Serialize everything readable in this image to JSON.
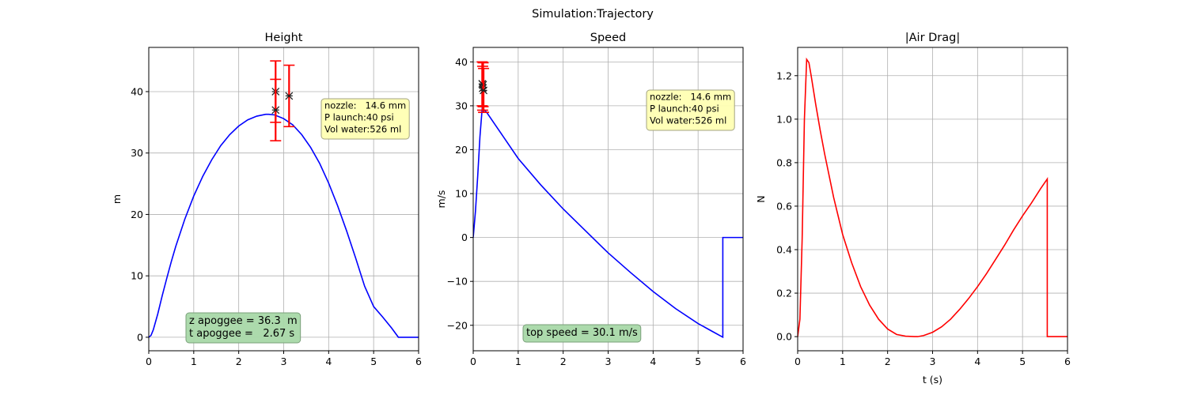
{
  "figure": {
    "suptitle": "Simulation:Trajectory"
  },
  "chart_data": [
    {
      "id": "height",
      "type": "line",
      "title": "Height",
      "xlabel": "",
      "ylabel": "m",
      "xlim": [
        0,
        6
      ],
      "ylim": [
        -2.2,
        47.2
      ],
      "xticks": [
        0,
        1,
        2,
        3,
        4,
        5,
        6
      ],
      "yticks": [
        0,
        10,
        20,
        30,
        40
      ],
      "grid": true,
      "series": [
        {
          "color": "#0000ff",
          "kind": "line",
          "x": [
            0,
            0.05,
            0.1,
            0.2,
            0.3,
            0.4,
            0.5,
            0.6,
            0.8,
            1.0,
            1.2,
            1.4,
            1.6,
            1.8,
            2.0,
            2.2,
            2.4,
            2.6,
            2.67,
            2.8,
            3.0,
            3.2,
            3.4,
            3.6,
            3.8,
            4.0,
            4.2,
            4.4,
            4.6,
            4.8,
            5.0,
            5.2,
            5.4,
            5.55,
            6.0
          ],
          "y": [
            0,
            0.3,
            1.2,
            3.8,
            6.8,
            9.6,
            12.3,
            14.8,
            19.2,
            23.0,
            26.2,
            28.9,
            31.2,
            33.0,
            34.4,
            35.4,
            36.0,
            36.3,
            36.3,
            36.2,
            35.6,
            34.6,
            33.0,
            30.9,
            28.3,
            25.1,
            21.4,
            17.3,
            12.9,
            8.3,
            5.0,
            3.3,
            1.5,
            0,
            0
          ]
        }
      ],
      "measurements": [
        {
          "x": 2.82,
          "y": 40.0,
          "yerr": 5.0
        },
        {
          "x": 2.82,
          "y": 37.0,
          "yerr": 5.0
        },
        {
          "x": 3.12,
          "y": 39.3,
          "yerr": 5.0
        }
      ],
      "annotations": [
        {
          "lines": [
            "nozzle:   14.6 mm",
            "P launch:40 psi",
            "Vol water:526 ml"
          ],
          "style": "yellow"
        },
        {
          "lines": [
            "z apoggee = 36.3  m",
            "t apoggee =   2.67 s"
          ],
          "style": "green"
        }
      ]
    },
    {
      "id": "speed",
      "type": "line",
      "title": "Speed",
      "xlabel": "",
      "ylabel": "m/s",
      "xlim": [
        0,
        6
      ],
      "ylim": [
        -25.8,
        43.3
      ],
      "xticks": [
        0,
        1,
        2,
        3,
        4,
        5,
        6
      ],
      "yticks": [
        -20,
        -10,
        0,
        10,
        20,
        30,
        40
      ],
      "grid": true,
      "series": [
        {
          "color": "#0000ff",
          "kind": "line",
          "x": [
            0,
            0.05,
            0.1,
            0.15,
            0.2,
            0.3,
            0.5,
            0.7,
            1.0,
            1.5,
            2.0,
            2.5,
            3.0,
            3.5,
            4.0,
            4.5,
            5.0,
            5.3,
            5.55,
            5.55,
            6.0
          ],
          "y": [
            0,
            6,
            14,
            23,
            29.5,
            28.5,
            25.5,
            22.5,
            18.0,
            12.0,
            6.5,
            1.5,
            -3.5,
            -8.0,
            -12.3,
            -16.2,
            -19.6,
            -21.3,
            -22.7,
            0,
            0
          ]
        }
      ],
      "measurements": [
        {
          "x": 0.2,
          "y": 35.0,
          "yerr": 5.0
        },
        {
          "x": 0.21,
          "y": 34.0,
          "yerr": 5.0
        },
        {
          "x": 0.22,
          "y": 34.8,
          "yerr": 5.0
        },
        {
          "x": 0.23,
          "y": 33.5,
          "yerr": 5.0
        }
      ],
      "annotations": [
        {
          "lines": [
            "nozzle:   14.6 mm",
            "P launch:40 psi",
            "Vol water:526 ml"
          ],
          "style": "yellow"
        },
        {
          "lines": [
            "top speed = 30.1 m/s"
          ],
          "style": "green"
        }
      ]
    },
    {
      "id": "drag",
      "type": "line",
      "title": "|Air Drag|",
      "xlabel": "t (s)",
      "ylabel": "N",
      "xlim": [
        0,
        6
      ],
      "ylim": [
        -0.065,
        1.33
      ],
      "xticks": [
        0,
        1,
        2,
        3,
        4,
        5,
        6
      ],
      "yticks": [
        0.0,
        0.2,
        0.4,
        0.6,
        0.8,
        1.0,
        1.2
      ],
      "grid": true,
      "series": [
        {
          "color": "#ff0000",
          "kind": "line",
          "x": [
            0,
            0.05,
            0.1,
            0.15,
            0.2,
            0.25,
            0.3,
            0.4,
            0.5,
            0.6,
            0.8,
            1.0,
            1.2,
            1.4,
            1.6,
            1.8,
            2.0,
            2.2,
            2.4,
            2.6,
            2.67,
            2.8,
            3.0,
            3.2,
            3.4,
            3.6,
            3.8,
            4.0,
            4.2,
            4.4,
            4.6,
            4.8,
            5.0,
            5.2,
            5.4,
            5.55,
            5.55,
            6.0
          ],
          "y": [
            0,
            0.08,
            0.45,
            1.0,
            1.275,
            1.26,
            1.2,
            1.07,
            0.95,
            0.84,
            0.64,
            0.47,
            0.34,
            0.23,
            0.145,
            0.08,
            0.035,
            0.01,
            0.002,
            0.0,
            0.0,
            0.005,
            0.02,
            0.045,
            0.08,
            0.125,
            0.175,
            0.23,
            0.29,
            0.355,
            0.42,
            0.49,
            0.555,
            0.615,
            0.68,
            0.725,
            0,
            0
          ]
        }
      ],
      "measurements": [],
      "annotations": []
    }
  ]
}
